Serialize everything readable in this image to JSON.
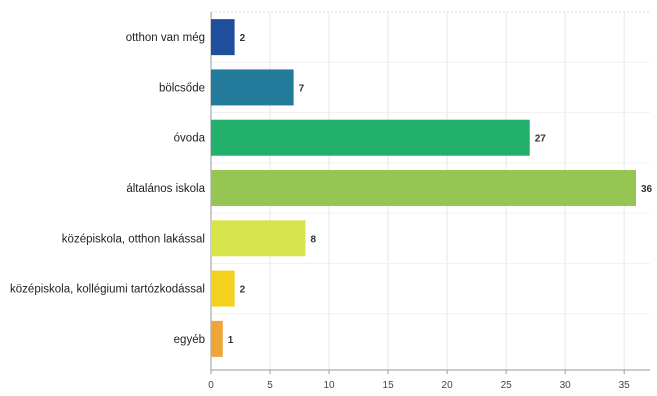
{
  "chart_data": {
    "type": "bar",
    "orientation": "horizontal",
    "title": "",
    "xlabel": "",
    "ylabel": "",
    "categories": [
      "otthon van még",
      "bölcsőde",
      "óvoda",
      "általános iskola",
      "középiskola, otthon lakással",
      "középiskola, kollégiumi tartózkodással",
      "egyéb"
    ],
    "values": [
      2,
      7,
      27,
      36,
      8,
      2,
      1
    ],
    "colors": [
      "#1f4e9c",
      "#237a9a",
      "#22b06b",
      "#95c552",
      "#d7e34a",
      "#f3d21f",
      "#eea53a"
    ],
    "xlim": [
      0,
      37
    ],
    "xticks": [
      0,
      5,
      10,
      15,
      20,
      25,
      30,
      35
    ],
    "grid": true,
    "legend": "none"
  }
}
